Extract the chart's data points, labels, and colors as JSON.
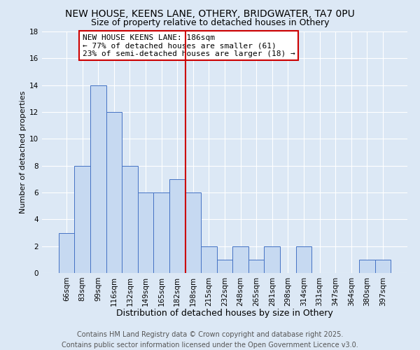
{
  "title": "NEW HOUSE, KEENS LANE, OTHERY, BRIDGWATER, TA7 0PU",
  "subtitle": "Size of property relative to detached houses in Othery",
  "xlabel": "Distribution of detached houses by size in Othery",
  "ylabel": "Number of detached properties",
  "bar_labels": [
    "66sqm",
    "83sqm",
    "99sqm",
    "116sqm",
    "132sqm",
    "149sqm",
    "165sqm",
    "182sqm",
    "198sqm",
    "215sqm",
    "232sqm",
    "248sqm",
    "265sqm",
    "281sqm",
    "298sqm",
    "314sqm",
    "331sqm",
    "347sqm",
    "364sqm",
    "380sqm",
    "397sqm"
  ],
  "bar_heights": [
    3,
    8,
    14,
    12,
    8,
    6,
    6,
    7,
    6,
    2,
    1,
    2,
    1,
    2,
    0,
    2,
    0,
    0,
    0,
    1,
    1
  ],
  "bar_color": "#c6d9f1",
  "bar_edge_color": "#4472c4",
  "vline_index": 7,
  "vline_color": "#cc0000",
  "annotation_text": "NEW HOUSE KEENS LANE: 186sqm\n← 77% of detached houses are smaller (61)\n23% of semi-detached houses are larger (18) →",
  "annotation_box_color": "#ffffff",
  "annotation_border_color": "#cc0000",
  "ylim": [
    0,
    18
  ],
  "yticks": [
    0,
    2,
    4,
    6,
    8,
    10,
    12,
    14,
    16,
    18
  ],
  "background_color": "#dce8f5",
  "plot_bg_color": "#dce8f5",
  "grid_color": "#ffffff",
  "footer_text": "Contains HM Land Registry data © Crown copyright and database right 2025.\nContains public sector information licensed under the Open Government Licence v3.0.",
  "title_fontsize": 10,
  "subtitle_fontsize": 9,
  "xlabel_fontsize": 9,
  "ylabel_fontsize": 8,
  "tick_fontsize": 7.5,
  "annotation_fontsize": 8,
  "footer_fontsize": 7
}
